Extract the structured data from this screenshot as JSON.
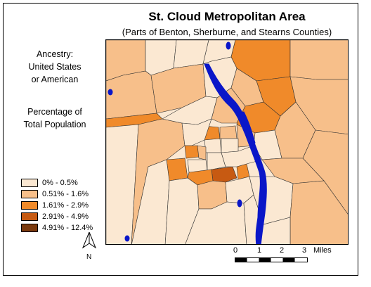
{
  "title": "St. Cloud Metropolitan Area",
  "subtitle": "(Parts of Benton, Sherburne, and Stearns Counties)",
  "side": {
    "lines": [
      "Ancestry:",
      "United States",
      "or American"
    ],
    "measure_lines": [
      "Percentage of",
      "Total Population"
    ]
  },
  "legend": [
    {
      "label": "0% - 0.5%",
      "color": "#fbe8d2"
    },
    {
      "label": "0.51% - 1.6%",
      "color": "#f7bf8a"
    },
    {
      "label": "1.61% - 2.9%",
      "color": "#f08a2a"
    },
    {
      "label": "2.91% - 4.9%",
      "color": "#c75a12"
    },
    {
      "label": "4.91% - 12.4%",
      "color": "#7b3a0e"
    }
  ],
  "north": {
    "label": "N"
  },
  "scale": {
    "ticks": [
      "0",
      "1",
      "2",
      "3"
    ],
    "units": "Miles"
  },
  "colors": {
    "water": "#0a16c8",
    "border": "#333333"
  }
}
